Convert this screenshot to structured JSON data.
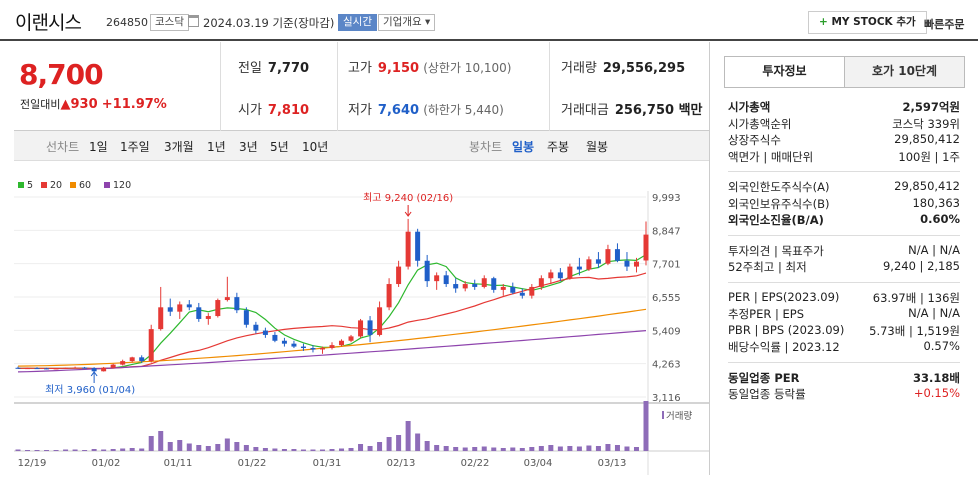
{
  "header": {
    "name": "이랜시스",
    "code": "264850",
    "market": "코스닥",
    "date": "2024.03.19",
    "basis": "기준(장마감)",
    "realtime": "실시간",
    "company_info": "기업개요",
    "mystock": "MY STOCK 추가",
    "quick_order": "빠른주문"
  },
  "summary": {
    "price": "8,700",
    "change_label": "전일대비",
    "change_amt": "930",
    "change_pct": "+11.97%",
    "prev_close_label": "전일",
    "prev_close": "7,770",
    "open_label": "시가",
    "open": "7,810",
    "high_label": "고가",
    "high": "9,150",
    "upper_limit": "(상한가 10,100)",
    "low_label": "저가",
    "low": "7,640",
    "lower_limit": "(하한가 5,440)",
    "volume_label": "거래량",
    "volume": "29,556,295",
    "amount_label": "거래대금",
    "amount": "256,750 백만"
  },
  "tabs": {
    "line_label": "선차트",
    "periods": [
      "1일",
      "1주일",
      "3개월",
      "1년",
      "3년",
      "5년",
      "10년"
    ],
    "candle_label": "봉차트",
    "candle": [
      "일봉",
      "주봉",
      "월봉"
    ]
  },
  "chart_data": {
    "type": "candlestick",
    "legend": [
      "5",
      "20",
      "60",
      "120"
    ],
    "colors": {
      "ma5": "#2eb82e",
      "ma20": "#e53935",
      "ma60": "#f08c00",
      "ma120": "#8e44ad",
      "up": "#e53935",
      "down": "#1f5fc8",
      "vol": "#8e6cb8"
    },
    "y_ticks": [
      "9,993",
      "8,847",
      "7,701",
      "6,555",
      "5,409",
      "4,263",
      "3,116"
    ],
    "ylim": [
      3116,
      9993
    ],
    "x_ticks": [
      "12/19",
      "01/02",
      "01/11",
      "01/22",
      "01/31",
      "02/13",
      "02/22",
      "03/04",
      "03/13"
    ],
    "annotations": {
      "high": "최고 9,240 (02/16)",
      "low": "최저 3,960 (01/04)"
    },
    "volume_label": "거래량"
  },
  "side": {
    "tab_active": "투자정보",
    "tab_other": "호가 10단계",
    "rows1": [
      [
        "시가총액",
        "2,597억원"
      ],
      [
        "시가총액순위",
        "코스닥 339위"
      ],
      [
        "상장주식수",
        "29,850,412"
      ],
      [
        "액면가 | 매매단위",
        "100원 | 1주"
      ]
    ],
    "rows2": [
      [
        "외국인한도주식수(A)",
        "29,850,412"
      ],
      [
        "외국인보유주식수(B)",
        "180,363"
      ],
      [
        "외국인소진율(B/A)",
        "0.60%"
      ]
    ],
    "rows3": [
      [
        "투자의견 | 목표주가",
        "N/A | N/A"
      ],
      [
        "52주최고 | 최저",
        "9,240 | 2,185"
      ]
    ],
    "rows4": [
      [
        "PER | EPS(2023.09)",
        "63.97배 | 136원"
      ],
      [
        "추정PER | EPS",
        "N/A | N/A"
      ],
      [
        "PBR | BPS (2023.09)",
        "5.73배 | 1,519원"
      ],
      [
        "배당수익률 | 2023.12",
        "0.57%"
      ]
    ],
    "rows5": [
      [
        "동일업종 PER",
        "33.18배"
      ],
      [
        "동일업종 등락률",
        "+0.15%"
      ]
    ]
  }
}
